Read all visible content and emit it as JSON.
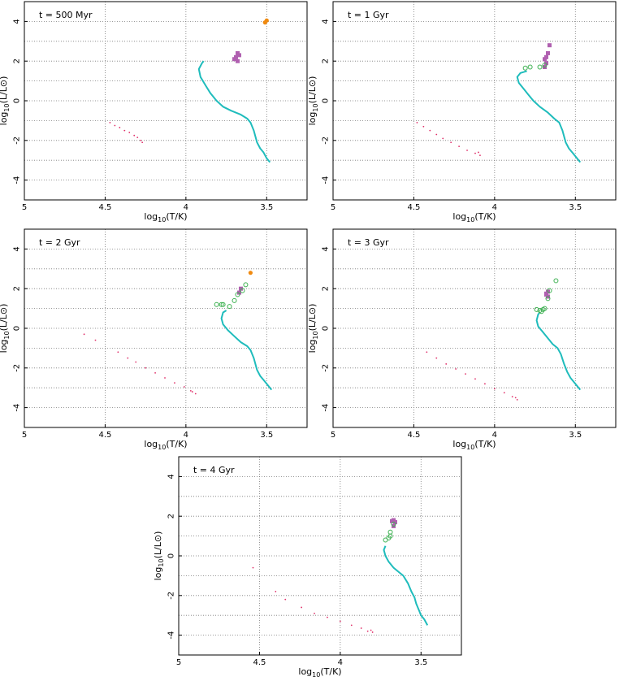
{
  "colors": {
    "main_sequence_track": "#1fbcbc",
    "white_dwarfs": "#e0306a",
    "giants_filled": "#b060b0",
    "giants_open": "#3cb050",
    "orange_points": "#f08a10"
  },
  "chart_data": [
    {
      "type": "scatter",
      "title": "t = 500 Myr",
      "xlabel": "log10(T/K)",
      "ylabel": "log10(L/L⊙)",
      "xlim": [
        5.0,
        3.25
      ],
      "ylim": [
        -5,
        5
      ],
      "x_ticks": [
        "5",
        "4.5",
        "4",
        "3.5"
      ],
      "y_ticks": [
        "-4",
        "-2",
        "0",
        "2",
        "4"
      ],
      "grid": true,
      "series": [
        {
          "kind": "ms_track",
          "style": "line",
          "color": "#1fbcbc",
          "points": [
            [
              3.89,
              2.0
            ],
            [
              3.9,
              1.9
            ],
            [
              3.92,
              1.6
            ],
            [
              3.91,
              1.2
            ],
            [
              3.88,
              0.8
            ],
            [
              3.85,
              0.4
            ],
            [
              3.81,
              0.0
            ],
            [
              3.77,
              -0.3
            ],
            [
              3.72,
              -0.5
            ],
            [
              3.66,
              -0.7
            ],
            [
              3.62,
              -0.9
            ],
            [
              3.6,
              -1.1
            ],
            [
              3.58,
              -1.5
            ],
            [
              3.56,
              -2.1
            ],
            [
              3.54,
              -2.4
            ],
            [
              3.52,
              -2.6
            ],
            [
              3.5,
              -2.9
            ],
            [
              3.48,
              -3.1
            ]
          ]
        },
        {
          "kind": "white_dwarfs",
          "style": "dots",
          "color": "#e0306a",
          "points": [
            [
              4.47,
              -1.1
            ],
            [
              4.44,
              -1.25
            ],
            [
              4.41,
              -1.35
            ],
            [
              4.38,
              -1.5
            ],
            [
              4.35,
              -1.6
            ],
            [
              4.32,
              -1.75
            ],
            [
              4.3,
              -1.85
            ],
            [
              4.28,
              -2.0
            ],
            [
              4.27,
              -2.1
            ]
          ]
        },
        {
          "kind": "giants",
          "style": "filled-square",
          "color": "#b060b0",
          "points": [
            [
              3.68,
              2.0
            ],
            [
              3.69,
              2.2
            ],
            [
              3.68,
              2.4
            ],
            [
              3.67,
              2.3
            ],
            [
              3.7,
              2.1
            ]
          ]
        },
        {
          "kind": "bright",
          "style": "filled-circle",
          "color": "#f08a10",
          "points": [
            [
              3.51,
              3.95
            ],
            [
              3.5,
              4.05
            ]
          ]
        }
      ]
    },
    {
      "type": "scatter",
      "title": "t = 1 Gyr",
      "xlabel": "log10(T/K)",
      "ylabel": "log10(L/L⊙)",
      "xlim": [
        5.0,
        3.25
      ],
      "ylim": [
        -5,
        5
      ],
      "x_ticks": [
        "5",
        "4.5",
        "4",
        "3.5"
      ],
      "y_ticks": [
        "-4",
        "-2",
        "0",
        "2",
        "4"
      ],
      "grid": true,
      "series": [
        {
          "kind": "ms_track",
          "style": "line",
          "color": "#1fbcbc",
          "points": [
            [
              3.8,
              1.5
            ],
            [
              3.84,
              1.4
            ],
            [
              3.86,
              1.2
            ],
            [
              3.85,
              0.9
            ],
            [
              3.82,
              0.6
            ],
            [
              3.79,
              0.3
            ],
            [
              3.76,
              0.0
            ],
            [
              3.72,
              -0.3
            ],
            [
              3.67,
              -0.6
            ],
            [
              3.63,
              -0.9
            ],
            [
              3.6,
              -1.1
            ],
            [
              3.58,
              -1.5
            ],
            [
              3.56,
              -2.1
            ],
            [
              3.54,
              -2.4
            ],
            [
              3.52,
              -2.6
            ],
            [
              3.5,
              -2.8
            ],
            [
              3.48,
              -3.0
            ],
            [
              3.47,
              -3.1
            ]
          ]
        },
        {
          "kind": "white_dwarfs",
          "style": "dots",
          "color": "#e0306a",
          "points": [
            [
              4.48,
              -1.1
            ],
            [
              4.44,
              -1.3
            ],
            [
              4.4,
              -1.5
            ],
            [
              4.36,
              -1.7
            ],
            [
              4.32,
              -1.9
            ],
            [
              4.27,
              -2.1
            ],
            [
              4.22,
              -2.3
            ],
            [
              4.17,
              -2.5
            ],
            [
              4.12,
              -2.65
            ],
            [
              4.09,
              -2.75
            ],
            [
              4.1,
              -2.6
            ]
          ]
        },
        {
          "kind": "giants",
          "style": "filled-square",
          "color": "#b060b0",
          "points": [
            [
              3.69,
              1.7
            ],
            [
              3.68,
              1.9
            ],
            [
              3.69,
              2.1
            ],
            [
              3.68,
              2.2
            ],
            [
              3.67,
              2.4
            ],
            [
              3.66,
              2.8
            ]
          ]
        },
        {
          "kind": "open",
          "style": "open-circle",
          "color": "#3cb050",
          "points": [
            [
              3.78,
              1.7
            ],
            [
              3.81,
              1.65
            ],
            [
              3.72,
              1.7
            ],
            [
              3.69,
              1.8
            ]
          ]
        }
      ]
    },
    {
      "type": "scatter",
      "title": "t = 2 Gyr",
      "xlabel": "log10(T/K)",
      "ylabel": "log10(L/L⊙)",
      "xlim": [
        5.0,
        3.25
      ],
      "ylim": [
        -5,
        5
      ],
      "x_ticks": [
        "5",
        "4.5",
        "4",
        "3.5"
      ],
      "y_ticks": [
        "-4",
        "-2",
        "0",
        "2",
        "4"
      ],
      "grid": true,
      "series": [
        {
          "kind": "ms_track",
          "style": "line",
          "color": "#1fbcbc",
          "points": [
            [
              3.75,
              0.9
            ],
            [
              3.77,
              0.8
            ],
            [
              3.78,
              0.5
            ],
            [
              3.77,
              0.2
            ],
            [
              3.74,
              -0.1
            ],
            [
              3.7,
              -0.4
            ],
            [
              3.66,
              -0.7
            ],
            [
              3.62,
              -0.9
            ],
            [
              3.6,
              -1.1
            ],
            [
              3.58,
              -1.5
            ],
            [
              3.56,
              -2.1
            ],
            [
              3.54,
              -2.4
            ],
            [
              3.52,
              -2.6
            ],
            [
              3.5,
              -2.8
            ],
            [
              3.48,
              -3.0
            ],
            [
              3.47,
              -3.1
            ]
          ]
        },
        {
          "kind": "white_dwarfs",
          "style": "dots",
          "color": "#e0306a",
          "points": [
            [
              4.63,
              -0.3
            ],
            [
              4.56,
              -0.6
            ],
            [
              4.42,
              -1.2
            ],
            [
              4.36,
              -1.5
            ],
            [
              4.31,
              -1.7
            ],
            [
              4.25,
              -2.0
            ],
            [
              4.19,
              -2.25
            ],
            [
              4.13,
              -2.5
            ],
            [
              4.07,
              -2.75
            ],
            [
              4.01,
              -2.95
            ],
            [
              3.97,
              -3.15
            ],
            [
              3.94,
              -3.3
            ],
            [
              3.96,
              -3.2
            ]
          ]
        },
        {
          "kind": "giants",
          "style": "filled-square",
          "color": "#b060b0",
          "points": [
            [
              3.67,
              1.8
            ],
            [
              3.66,
              2.0
            ]
          ]
        },
        {
          "kind": "open",
          "style": "open-circle",
          "color": "#3cb050",
          "points": [
            [
              3.81,
              1.2
            ],
            [
              3.78,
              1.2
            ],
            [
              3.77,
              1.2
            ],
            [
              3.73,
              1.1
            ],
            [
              3.7,
              1.4
            ],
            [
              3.68,
              1.7
            ],
            [
              3.65,
              1.9
            ],
            [
              3.63,
              2.2
            ]
          ]
        },
        {
          "kind": "bright",
          "style": "filled-circle",
          "color": "#f08a10",
          "points": [
            [
              3.6,
              2.8
            ]
          ]
        }
      ]
    },
    {
      "type": "scatter",
      "title": "t = 3 Gyr",
      "xlabel": "log10(T/K)",
      "ylabel": "log10(L/L⊙)",
      "xlim": [
        5.0,
        3.25
      ],
      "ylim": [
        -5,
        5
      ],
      "x_ticks": [
        "5",
        "4.5",
        "4",
        "3.5"
      ],
      "y_ticks": [
        "-4",
        "-2",
        "0",
        "2",
        "4"
      ],
      "grid": true,
      "series": [
        {
          "kind": "ms_track",
          "style": "line",
          "color": "#1fbcbc",
          "points": [
            [
              3.72,
              0.8
            ],
            [
              3.73,
              0.7
            ],
            [
              3.74,
              0.4
            ],
            [
              3.73,
              0.1
            ],
            [
              3.7,
              -0.2
            ],
            [
              3.67,
              -0.5
            ],
            [
              3.64,
              -0.8
            ],
            [
              3.61,
              -1.0
            ],
            [
              3.59,
              -1.3
            ],
            [
              3.57,
              -1.8
            ],
            [
              3.55,
              -2.2
            ],
            [
              3.53,
              -2.5
            ],
            [
              3.51,
              -2.7
            ],
            [
              3.49,
              -2.9
            ],
            [
              3.47,
              -3.1
            ]
          ]
        },
        {
          "kind": "white_dwarfs",
          "style": "dots",
          "color": "#e0306a",
          "points": [
            [
              4.42,
              -1.2
            ],
            [
              4.36,
              -1.5
            ],
            [
              4.3,
              -1.8
            ],
            [
              4.24,
              -2.05
            ],
            [
              4.18,
              -2.3
            ],
            [
              4.12,
              -2.55
            ],
            [
              4.06,
              -2.8
            ],
            [
              4.0,
              -3.05
            ],
            [
              3.94,
              -3.25
            ],
            [
              3.89,
              -3.45
            ],
            [
              3.86,
              -3.6
            ],
            [
              3.87,
              -3.5
            ]
          ]
        },
        {
          "kind": "giants",
          "style": "filled-square",
          "color": "#b060b0",
          "points": [
            [
              3.67,
              1.6
            ],
            [
              3.68,
              1.7
            ],
            [
              3.67,
              1.85
            ],
            [
              3.68,
              1.75
            ]
          ]
        },
        {
          "kind": "open",
          "style": "open-circle",
          "color": "#3cb050",
          "points": [
            [
              3.74,
              0.95
            ],
            [
              3.72,
              0.9
            ],
            [
              3.71,
              0.85
            ],
            [
              3.7,
              0.95
            ],
            [
              3.69,
              1.0
            ],
            [
              3.67,
              1.5
            ],
            [
              3.66,
              1.9
            ],
            [
              3.62,
              2.4
            ]
          ]
        }
      ]
    },
    {
      "type": "scatter",
      "title": "t = 4 Gyr",
      "xlabel": "log10(T/K)",
      "ylabel": "log10(L/L⊙)",
      "xlim": [
        5.0,
        3.25
      ],
      "ylim": [
        -5,
        5
      ],
      "x_ticks": [
        "5",
        "4.5",
        "4",
        "3.5"
      ],
      "y_ticks": [
        "-4",
        "-2",
        "0",
        "2",
        "4"
      ],
      "grid": true,
      "series": [
        {
          "kind": "ms_track",
          "style": "line",
          "color": "#1fbcbc",
          "points": [
            [
              3.72,
              0.5
            ],
            [
              3.73,
              0.3
            ],
            [
              3.72,
              0.0
            ],
            [
              3.7,
              -0.3
            ],
            [
              3.67,
              -0.6
            ],
            [
              3.64,
              -0.8
            ],
            [
              3.61,
              -1.0
            ],
            [
              3.58,
              -1.4
            ],
            [
              3.56,
              -1.8
            ],
            [
              3.54,
              -2.1
            ],
            [
              3.53,
              -2.4
            ],
            [
              3.51,
              -2.8
            ],
            [
              3.5,
              -3.0
            ],
            [
              3.48,
              -3.2
            ],
            [
              3.46,
              -3.5
            ]
          ]
        },
        {
          "kind": "white_dwarfs",
          "style": "dots",
          "color": "#e0306a",
          "points": [
            [
              4.54,
              -0.6
            ],
            [
              4.4,
              -1.8
            ],
            [
              4.34,
              -2.2
            ],
            [
              4.24,
              -2.6
            ],
            [
              4.16,
              -2.9
            ],
            [
              4.08,
              -3.1
            ],
            [
              4.0,
              -3.3
            ],
            [
              3.93,
              -3.5
            ],
            [
              3.87,
              -3.65
            ],
            [
              3.83,
              -3.8
            ],
            [
              3.8,
              -3.85
            ],
            [
              3.81,
              -3.75
            ]
          ]
        },
        {
          "kind": "giants",
          "style": "filled-square",
          "color": "#b060b0",
          "points": [
            [
              3.67,
              1.5
            ],
            [
              3.68,
              1.75
            ],
            [
              3.67,
              1.8
            ],
            [
              3.66,
              1.7
            ]
          ]
        },
        {
          "kind": "open",
          "style": "open-circle",
          "color": "#3cb050",
          "points": [
            [
              3.72,
              0.8
            ],
            [
              3.7,
              0.9
            ],
            [
              3.69,
              1.0
            ],
            [
              3.69,
              1.2
            ],
            [
              3.67,
              1.6
            ]
          ]
        }
      ]
    }
  ]
}
